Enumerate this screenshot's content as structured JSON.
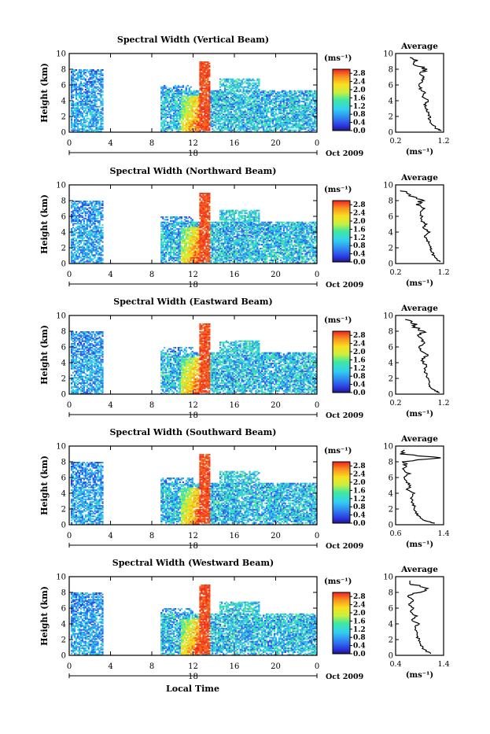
{
  "figure": {
    "x_axis_title": "Local Time",
    "y_axis_title": "Height (km)",
    "date_label": "Oct 2009",
    "day_label": "18",
    "colorbar_unit": "(ms⁻¹)",
    "avg_title": "Average",
    "avg_xlabel": "(ms⁻¹)"
  },
  "chart_data": [
    {
      "type": "heatmap",
      "title": "Spectral Width (Vertical Beam)",
      "x_ticks": [
        "0",
        "4",
        "8",
        "12",
        "16",
        "20",
        "0"
      ],
      "y_ticks": [
        "0",
        "2",
        "4",
        "6",
        "8",
        "10"
      ],
      "xlim": [
        0,
        24
      ],
      "ylim": [
        0,
        10
      ],
      "colorbar_ticks": [
        "2.8",
        "2.4",
        "2.0",
        "1.6",
        "1.2",
        "0.8",
        "0.4",
        "0.0"
      ],
      "colorbar_range": [
        0,
        3.0
      ],
      "average_profile": {
        "x_ticks": [
          "0.2",
          "1.2"
        ],
        "xlim": [
          0.2,
          1.2
        ],
        "ylim": [
          0,
          10
        ],
        "height_km": [
          0.2,
          0.5,
          1,
          1.5,
          2,
          2.5,
          3,
          3.5,
          4,
          4.5,
          5,
          5.5,
          6,
          6.5,
          7,
          7.5,
          8,
          8.5,
          9,
          9.5
        ],
        "values": [
          1.15,
          1.05,
          0.95,
          0.92,
          0.9,
          0.88,
          0.85,
          0.8,
          0.88,
          0.75,
          0.8,
          0.72,
          0.7,
          0.75,
          0.8,
          0.7,
          0.85,
          0.65,
          0.6,
          0.5
        ]
      }
    },
    {
      "type": "heatmap",
      "title": "Spectral Width (Northward Beam)",
      "x_ticks": [
        "0",
        "4",
        "8",
        "12",
        "16",
        "20",
        "0"
      ],
      "y_ticks": [
        "0",
        "2",
        "4",
        "6",
        "8",
        "10"
      ],
      "xlim": [
        0,
        24
      ],
      "ylim": [
        0,
        10
      ],
      "colorbar_ticks": [
        "2.8",
        "2.4",
        "2.0",
        "1.6",
        "1.2",
        "0.8",
        "0.4",
        "0.0"
      ],
      "colorbar_range": [
        0,
        3.0
      ],
      "average_profile": {
        "x_ticks": [
          "0.2",
          "1.2"
        ],
        "xlim": [
          0.2,
          1.2
        ],
        "ylim": [
          0,
          10
        ],
        "height_km": [
          0.2,
          0.5,
          1,
          1.5,
          2,
          2.5,
          3,
          3.5,
          4,
          4.5,
          5,
          5.5,
          6,
          6.5,
          7,
          7.5,
          8,
          8.5,
          9,
          9.3
        ],
        "values": [
          1.15,
          1.05,
          1.0,
          0.95,
          0.92,
          0.9,
          0.85,
          0.82,
          0.9,
          0.78,
          0.82,
          0.72,
          0.75,
          0.7,
          0.8,
          0.65,
          0.75,
          0.6,
          0.45,
          0.3
        ]
      }
    },
    {
      "type": "heatmap",
      "title": "Spectral Width (Eastward Beam)",
      "x_ticks": [
        "0",
        "4",
        "8",
        "12",
        "16",
        "20",
        "0"
      ],
      "y_ticks": [
        "0",
        "2",
        "4",
        "6",
        "8",
        "10"
      ],
      "xlim": [
        0,
        24
      ],
      "ylim": [
        0,
        10
      ],
      "colorbar_ticks": [
        "2.8",
        "2.4",
        "2.0",
        "1.6",
        "1.2",
        "0.8",
        "0.4",
        "0.0"
      ],
      "colorbar_range": [
        0,
        3.0
      ],
      "average_profile": {
        "x_ticks": [
          "0.2",
          "1.2"
        ],
        "xlim": [
          0.2,
          1.2
        ],
        "ylim": [
          0,
          10
        ],
        "height_km": [
          0.2,
          0.5,
          1,
          1.5,
          2,
          2.5,
          3,
          3.5,
          4,
          4.5,
          5,
          5.5,
          6,
          6.5,
          7,
          7.5,
          8,
          8.5,
          9,
          9.5
        ],
        "values": [
          1.1,
          1.0,
          0.92,
          0.9,
          0.88,
          0.85,
          0.8,
          0.85,
          0.78,
          0.75,
          0.88,
          0.72,
          0.7,
          0.78,
          0.75,
          0.68,
          0.8,
          0.6,
          0.55,
          0.4
        ]
      }
    },
    {
      "type": "heatmap",
      "title": "Spectral Width (Southward Beam)",
      "x_ticks": [
        "0",
        "4",
        "8",
        "12",
        "16",
        "20",
        "0"
      ],
      "y_ticks": [
        "0",
        "2",
        "4",
        "6",
        "8",
        "10"
      ],
      "xlim": [
        0,
        24
      ],
      "ylim": [
        0,
        10
      ],
      "colorbar_ticks": [
        "2.8",
        "2.4",
        "2.0",
        "1.6",
        "1.2",
        "0.8",
        "0.4",
        "0.0"
      ],
      "colorbar_range": [
        0,
        3.0
      ],
      "average_profile": {
        "x_ticks": [
          "0.6",
          "1.4"
        ],
        "xlim": [
          0.6,
          1.4
        ],
        "ylim": [
          0,
          10
        ],
        "height_km": [
          0.2,
          0.5,
          1,
          1.5,
          2,
          2.5,
          3,
          3.5,
          4,
          4.5,
          5,
          5.5,
          6,
          6.5,
          7,
          7.5,
          8,
          8.5,
          9,
          9.5
        ],
        "values": [
          1.25,
          1.1,
          1.0,
          0.95,
          0.92,
          0.9,
          0.88,
          0.85,
          0.9,
          0.8,
          0.85,
          0.78,
          0.75,
          0.82,
          0.72,
          0.8,
          0.7,
          1.35,
          0.7,
          0.75
        ]
      }
    },
    {
      "type": "heatmap",
      "title": "Spectral Width (Westward Beam)",
      "x_ticks": [
        "0",
        "4",
        "8",
        "12",
        "16",
        "20",
        "0"
      ],
      "y_ticks": [
        "0",
        "2",
        "4",
        "6",
        "8",
        "10"
      ],
      "xlim": [
        0,
        24
      ],
      "ylim": [
        0,
        10
      ],
      "colorbar_ticks": [
        "2.8",
        "2.4",
        "2.0",
        "1.6",
        "1.2",
        "0.8",
        "0.4",
        "0.0"
      ],
      "colorbar_range": [
        0,
        3.0
      ],
      "average_profile": {
        "x_ticks": [
          "0.4",
          "1.4"
        ],
        "xlim": [
          0.4,
          1.4
        ],
        "ylim": [
          0,
          10
        ],
        "height_km": [
          0.2,
          0.5,
          1,
          1.5,
          2,
          2.5,
          3,
          3.5,
          4,
          4.5,
          5,
          5.5,
          6,
          6.5,
          7,
          7.5,
          8,
          8.5,
          9,
          9.5
        ],
        "values": [
          1.15,
          1.05,
          0.95,
          0.9,
          0.88,
          0.85,
          0.85,
          0.8,
          0.88,
          0.75,
          0.82,
          0.7,
          0.75,
          0.68,
          0.78,
          0.65,
          0.9,
          1.05,
          0.75,
          0.7
        ]
      }
    }
  ]
}
